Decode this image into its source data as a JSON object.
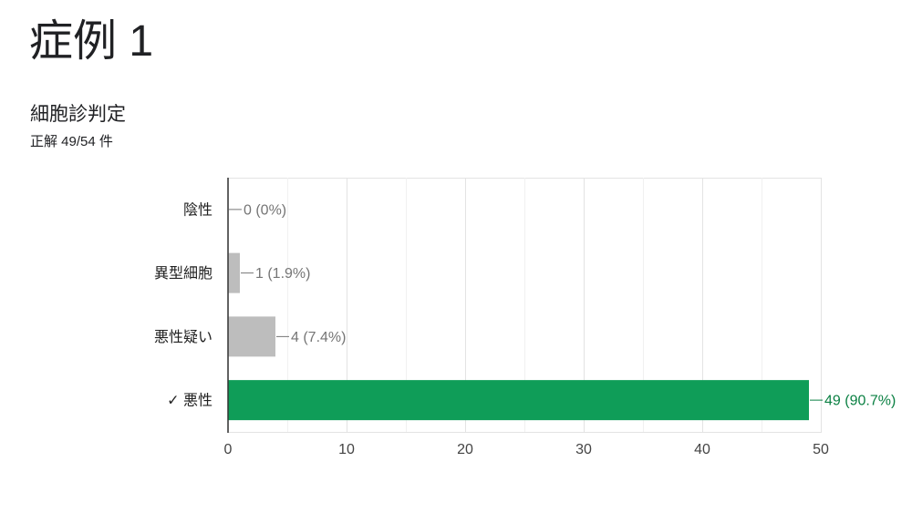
{
  "page": {
    "title": "症例 1"
  },
  "colors": {
    "correct": "#0f9d58",
    "correct_label": "#0b8043",
    "other": "#bdbdbd",
    "other_label": "#757575"
  },
  "chart_data": {
    "type": "bar",
    "orientation": "horizontal",
    "title": "細胞診判定",
    "subtitle": "正解 49/54 件",
    "categories": [
      "陰性",
      "異型細胞",
      "悪性疑い",
      "悪性"
    ],
    "values": [
      0,
      1,
      4,
      49
    ],
    "data_labels": [
      "0 (0%)",
      "1 (1.9%)",
      "4 (7.4%)",
      "49 (90.7%)"
    ],
    "correct": [
      false,
      false,
      false,
      true
    ],
    "correct_mark": "✓",
    "xlim": [
      0,
      50
    ],
    "xticks": [
      0,
      10,
      20,
      30,
      40,
      50
    ],
    "gridline_step": 5,
    "grid": true
  }
}
